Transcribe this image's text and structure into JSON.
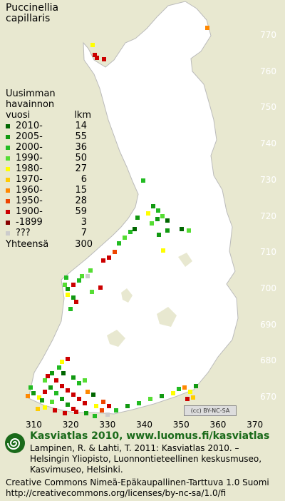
{
  "species": {
    "line1": "Puccinellia",
    "line2": "capillaris"
  },
  "legend": {
    "header_line1": "Uusimman",
    "header_line2": "havainnon",
    "header_col1": "vuosi",
    "header_col2": "lkm",
    "items": [
      {
        "label": "2010-",
        "count": "14",
        "color": "#006600"
      },
      {
        "label": "2005-",
        "count": "55",
        "color": "#119911"
      },
      {
        "label": "2000-",
        "count": "36",
        "color": "#22bb22"
      },
      {
        "label": "1990-",
        "count": "50",
        "color": "#55dd33"
      },
      {
        "label": "1980-",
        "count": "27",
        "color": "#ffff00"
      },
      {
        "label": "1970-",
        "count": "6",
        "color": "#ffcc00"
      },
      {
        "label": "1960-",
        "count": "15",
        "color": "#ff8800"
      },
      {
        "label": "1950-",
        "count": "28",
        "color": "#ee4400"
      },
      {
        "label": "1900-",
        "count": "59",
        "color": "#cc0000"
      },
      {
        "label": "-1899",
        "count": "3",
        "color": "#880000"
      },
      {
        "label": "???",
        "count": "7",
        "color": "#cccccc"
      }
    ],
    "total_label": "Yhteensä",
    "total_count": "300"
  },
  "axes": {
    "y_ticks": [
      "770",
      "760",
      "750",
      "740",
      "730",
      "720",
      "710",
      "700",
      "690",
      "680",
      "670"
    ],
    "x_ticks": [
      "310",
      "320",
      "330",
      "340",
      "350",
      "360",
      "370"
    ]
  },
  "colors": {
    "land": "#ffffff",
    "sea": "#e8e8d0",
    "footer_title": "#1a6a1a"
  },
  "cc_badge": "(cc) BY-NC-SA",
  "footer": {
    "title": "Kasviatlas 2010, www.luomus.fi/kasviatlas",
    "citation_line1": "Lampinen, R. & Lahti, T. 2011: Kasviatlas 2010. –",
    "citation_line2": "Helsingin Yliopisto, Luonnontieteellinen keskusmuseo,",
    "citation_line3": "Kasvimuseo, Helsinki.",
    "license_line1": "Creative Commons Nimeä-Epäkaupallinen-Tarttuva 1.0 Suomi",
    "license_line2": "http://creativecommons.org/licenses/by-nc-sa/1.0/fi"
  },
  "logo_icon": "spiral-logo-icon"
}
